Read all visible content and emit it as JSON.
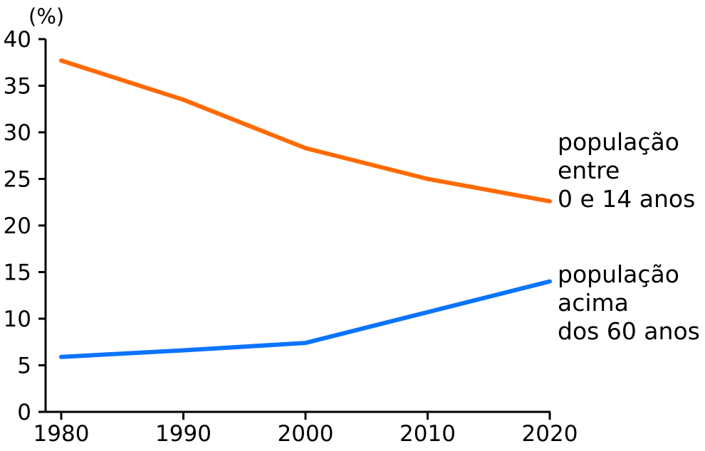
{
  "chart_data": {
    "type": "line",
    "x": [
      1980,
      1990,
      2000,
      2010,
      2020
    ],
    "x_tick_labels": [
      "1980",
      "1990",
      "2000",
      "2010",
      "2020"
    ],
    "y_tick_labels": [
      "0",
      "5",
      "10",
      "15",
      "20",
      "25",
      "30",
      "35",
      "40"
    ],
    "ylim": [
      0,
      40
    ],
    "xlim": [
      1980,
      2020
    ],
    "y_unit": "(%)",
    "grid": false,
    "series": [
      {
        "name_lines": [
          "população",
          "entre",
          "0 e 14 anos"
        ],
        "color": "#ff6a00",
        "values": [
          37.7,
          33.5,
          28.3,
          25.0,
          22.6
        ]
      },
      {
        "name_lines": [
          "população",
          "acima",
          "dos 60 anos"
        ],
        "color": "#0a74ff",
        "values": [
          5.9,
          6.6,
          7.4,
          10.7,
          14.0
        ]
      }
    ]
  }
}
